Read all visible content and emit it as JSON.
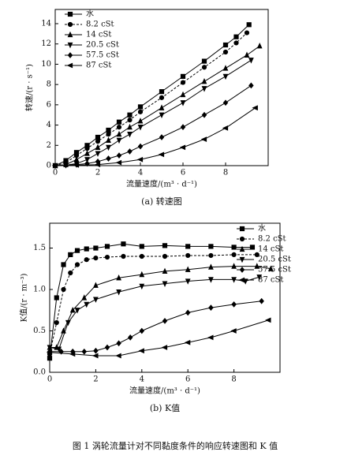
{
  "caption": "图 1 涡轮流量计对不同黏度条件的响应转速图和 K 值",
  "chart_data": [
    {
      "type": "line",
      "caption": "(a)  转速图",
      "x_label": "流量速度/(m³ · d⁻¹)",
      "y_label": "转速/(r · s⁻¹)",
      "xlim": [
        0,
        10
      ],
      "xticks": [
        0,
        2,
        4,
        6,
        8
      ],
      "ylim": [
        0,
        15.4
      ],
      "yticks": [
        0,
        2,
        4,
        6,
        8,
        10,
        12,
        14
      ],
      "legend": "upper left",
      "series": [
        {
          "name": "水",
          "color": "#000",
          "marker": "square",
          "linestyle": "solid",
          "x": [
            0,
            0.5,
            1,
            1.5,
            2,
            2.5,
            3,
            3.5,
            4,
            5,
            6,
            7,
            8,
            8.5,
            9.1
          ],
          "values": [
            0,
            0.5,
            1.3,
            2.0,
            2.8,
            3.5,
            4.3,
            5.0,
            5.8,
            7.3,
            8.8,
            10.3,
            11.9,
            12.7,
            13.9
          ]
        },
        {
          "name": "8.2 cSt",
          "color": "#000",
          "marker": "circle",
          "linestyle": "dashed",
          "x": [
            0,
            0.5,
            1,
            1.5,
            2,
            2.5,
            3,
            3.5,
            4,
            5,
            6,
            7,
            8,
            8.5,
            9.0
          ],
          "values": [
            0,
            0.3,
            1.0,
            1.7,
            2.4,
            3.1,
            3.8,
            4.5,
            5.3,
            6.7,
            8.2,
            9.7,
            11.2,
            12.1,
            13.1
          ]
        },
        {
          "name": "14 cSt",
          "color": "#000",
          "marker": "triangle-up",
          "linestyle": "solid",
          "x": [
            0,
            0.5,
            1,
            1.5,
            2,
            2.5,
            3,
            3.5,
            4,
            5,
            6,
            7,
            8,
            9,
            9.6
          ],
          "values": [
            0,
            0.1,
            0.6,
            1.2,
            1.8,
            2.5,
            3.1,
            3.8,
            4.4,
            5.7,
            7.0,
            8.3,
            9.6,
            10.9,
            11.8
          ]
        },
        {
          "name": "20.5 cSt",
          "color": "#000",
          "marker": "triangle-down",
          "linestyle": "solid",
          "x": [
            0,
            0.5,
            1,
            1.5,
            2,
            2.5,
            3,
            3.5,
            4,
            5,
            6,
            7,
            8,
            9.2
          ],
          "values": [
            0,
            0.05,
            0.2,
            0.6,
            1.2,
            1.8,
            2.5,
            3.1,
            3.8,
            5.0,
            6.2,
            7.6,
            8.8,
            10.4
          ]
        },
        {
          "name": "57.5 cSt",
          "color": "#000",
          "marker": "diamond",
          "linestyle": "solid",
          "x": [
            0,
            0.5,
            1,
            1.5,
            2,
            2.5,
            3,
            3.5,
            4,
            5,
            6,
            7,
            8,
            9.2
          ],
          "values": [
            0,
            0.05,
            0.1,
            0.2,
            0.4,
            0.7,
            1.0,
            1.4,
            1.9,
            2.8,
            3.8,
            5.0,
            6.2,
            7.9
          ]
        },
        {
          "name": "87 cSt",
          "color": "#000",
          "marker": "triangle-left",
          "linestyle": "solid",
          "x": [
            0,
            1,
            2,
            3,
            4,
            5,
            6,
            7,
            8,
            9.4
          ],
          "values": [
            0,
            0.05,
            0.1,
            0.3,
            0.6,
            1.1,
            1.8,
            2.6,
            3.7,
            5.7
          ]
        }
      ]
    },
    {
      "type": "line",
      "caption": "(b)  K值",
      "x_label": "流量速度/(m³ · d⁻¹)",
      "y_label": "K值/(r · m⁻³)",
      "xlim": [
        0,
        10
      ],
      "xticks": [
        0,
        2,
        4,
        6,
        8
      ],
      "ylim": [
        0,
        1.8
      ],
      "yticks": [
        {
          "value": 0,
          "label": "0.0"
        },
        0.5,
        {
          "value": 1,
          "label": "1.0"
        },
        1.5
      ],
      "legend": "upper right",
      "series": [
        {
          "name": "水",
          "color": "#000",
          "marker": "square",
          "linestyle": "solid",
          "x": [
            0,
            0.3,
            0.6,
            0.9,
            1.2,
            1.6,
            2,
            2.5,
            3.2,
            4,
            5,
            6,
            7,
            8,
            8.8
          ],
          "values": [
            0.17,
            0.9,
            1.3,
            1.42,
            1.47,
            1.49,
            1.5,
            1.52,
            1.55,
            1.52,
            1.53,
            1.52,
            1.52,
            1.51,
            1.51
          ]
        },
        {
          "name": "8.2 cSt",
          "color": "#000",
          "marker": "circle",
          "linestyle": "dashed",
          "x": [
            0,
            0.3,
            0.6,
            0.9,
            1.2,
            1.6,
            2,
            2.5,
            3.2,
            4,
            5,
            6,
            7,
            8,
            9
          ],
          "values": [
            0.22,
            0.6,
            1.0,
            1.2,
            1.3,
            1.36,
            1.38,
            1.39,
            1.4,
            1.4,
            1.4,
            1.41,
            1.41,
            1.42,
            1.42
          ]
        },
        {
          "name": "14 cSt",
          "color": "#000",
          "marker": "triangle-up",
          "linestyle": "solid",
          "x": [
            0,
            0.3,
            0.6,
            1,
            1.5,
            2,
            3,
            4,
            5,
            6,
            7,
            8,
            9,
            9.6
          ],
          "values": [
            0.3,
            0.3,
            0.5,
            0.75,
            0.9,
            1.05,
            1.14,
            1.18,
            1.22,
            1.24,
            1.27,
            1.28,
            1.28,
            1.25
          ]
        },
        {
          "name": "20.5 cSt",
          "color": "#000",
          "marker": "triangle-down",
          "linestyle": "solid",
          "x": [
            0,
            0.4,
            0.8,
            1.2,
            1.6,
            2,
            3,
            4,
            5,
            6,
            7,
            8,
            8.5,
            9.1
          ],
          "values": [
            0.3,
            0.28,
            0.6,
            0.75,
            0.82,
            0.88,
            0.97,
            1.04,
            1.07,
            1.1,
            1.12,
            1.12,
            1.1,
            1.15
          ]
        },
        {
          "name": "57.5 cSt",
          "color": "#000",
          "marker": "diamond",
          "linestyle": "solid",
          "x": [
            0,
            0.5,
            1,
            1.5,
            2,
            2.5,
            3,
            3.5,
            4,
            5,
            6,
            7,
            8,
            9.2
          ],
          "values": [
            0.25,
            0.25,
            0.25,
            0.25,
            0.26,
            0.3,
            0.35,
            0.42,
            0.5,
            0.62,
            0.72,
            0.78,
            0.82,
            0.86
          ]
        },
        {
          "name": "87 cSt",
          "color": "#000",
          "marker": "triangle-left",
          "linestyle": "solid",
          "x": [
            0,
            1,
            2,
            3,
            4,
            5,
            6,
            7,
            8,
            9.5
          ],
          "values": [
            0.24,
            0.22,
            0.2,
            0.2,
            0.26,
            0.3,
            0.36,
            0.42,
            0.5,
            0.63
          ]
        }
      ]
    }
  ]
}
